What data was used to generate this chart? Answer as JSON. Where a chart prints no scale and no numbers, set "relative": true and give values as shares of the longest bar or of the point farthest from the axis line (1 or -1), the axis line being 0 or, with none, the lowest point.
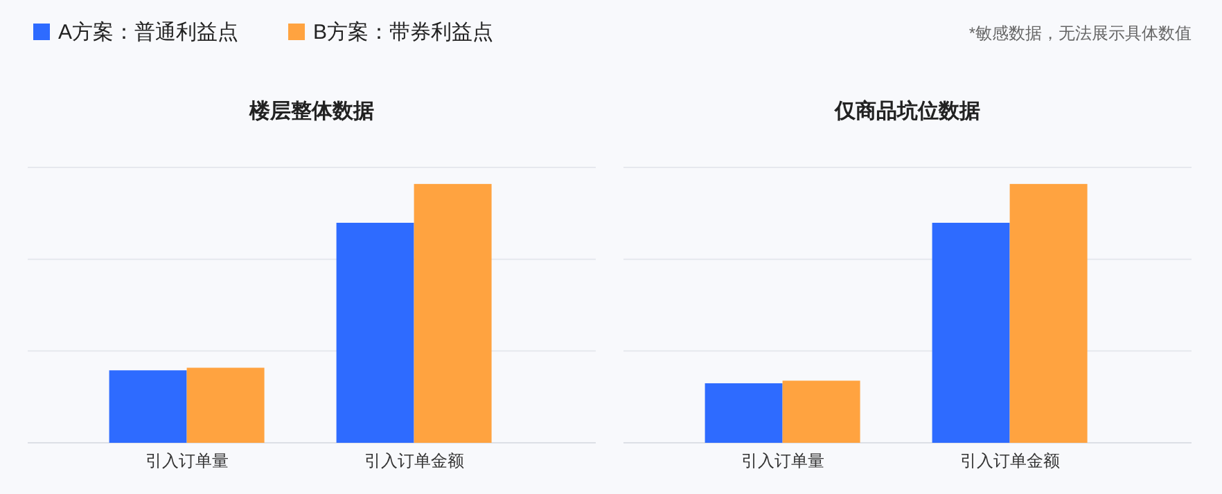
{
  "chart_data": [
    {
      "type": "bar",
      "title": "楼层整体数据",
      "categories": [
        "引入订单量",
        "引入订单金额"
      ],
      "relative": true,
      "legend": "top left",
      "annotations": [
        "*敏感数据，无法展示具体数值"
      ],
      "ref_lines": [
        {
          "axis": "y",
          "value": 0.355,
          "color": "#e6e8ee"
        },
        {
          "axis": "y",
          "value": 0.709,
          "color": "#e6e8ee"
        },
        {
          "axis": "y",
          "value": 1.064,
          "color": "#e6e8ee"
        }
      ],
      "series": [
        {
          "name": "A方案：普通利益点",
          "color": "#2e6bff",
          "values": [
            0.28,
            0.85
          ]
        },
        {
          "name": "B方案：带券利益点",
          "color": "#ffa340",
          "values": [
            0.29,
            1
          ]
        }
      ]
    },
    {
      "type": "bar",
      "title": "仅商品坑位数据",
      "categories": [
        "引入订单量",
        "引入订单金额"
      ],
      "relative": true,
      "ref_lines": [
        {
          "axis": "y",
          "value": 0.355,
          "color": "#e6e8ee"
        },
        {
          "axis": "y",
          "value": 0.709,
          "color": "#e6e8ee"
        },
        {
          "axis": "y",
          "value": 1.064,
          "color": "#e6e8ee"
        }
      ],
      "series": [
        {
          "color": "#2e6bff",
          "values": [
            0.23,
            0.85
          ]
        },
        {
          "color": "#ffa340",
          "values": [
            0.24,
            1
          ]
        }
      ]
    }
  ]
}
